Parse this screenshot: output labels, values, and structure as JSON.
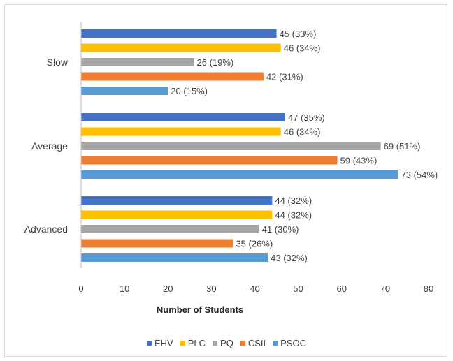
{
  "chart_data": {
    "type": "bar",
    "orientation": "horizontal",
    "categories": [
      "Slow",
      "Average",
      "Advanced"
    ],
    "series": [
      {
        "name": "EHV",
        "color": "#4472C4",
        "values": [
          45,
          47,
          44
        ],
        "labels": [
          "45 (33%)",
          "47 (35%)",
          "44 (32%)"
        ]
      },
      {
        "name": "PLC",
        "color": "#FFC000",
        "values": [
          46,
          46,
          44
        ],
        "labels": [
          "46 (34%)",
          "46 (34%)",
          "44 (32%)"
        ]
      },
      {
        "name": "PQ",
        "color": "#A5A5A5",
        "values": [
          26,
          69,
          41
        ],
        "labels": [
          "26 (19%)",
          "69 (51%)",
          "41 (30%)"
        ]
      },
      {
        "name": "CSII",
        "color": "#ED7D31",
        "values": [
          42,
          59,
          35
        ],
        "labels": [
          "42 (31%)",
          "59 (43%)",
          "35 (26%)"
        ]
      },
      {
        "name": "PSOC",
        "color": "#5B9BD5",
        "values": [
          20,
          73,
          43
        ],
        "labels": [
          "20 (15%)",
          "73 (54%)",
          "43 (32%)"
        ]
      }
    ],
    "xlabel": "Number of Students",
    "ylabel": "",
    "xlim": [
      0,
      80
    ],
    "xticks": [
      "0",
      "10",
      "20",
      "30",
      "40",
      "50",
      "60",
      "70",
      "80"
    ],
    "grid": false,
    "legend": "bottom"
  }
}
